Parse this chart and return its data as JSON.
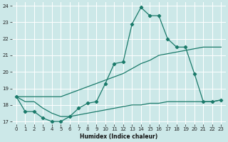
{
  "xlabel": "Humidex (Indice chaleur)",
  "xlim": [
    -0.5,
    23.5
  ],
  "ylim": [
    16.85,
    24.2
  ],
  "yticks": [
    17,
    18,
    19,
    20,
    21,
    22,
    23,
    24
  ],
  "xticks": [
    0,
    1,
    2,
    3,
    4,
    5,
    6,
    7,
    8,
    9,
    10,
    11,
    12,
    13,
    14,
    15,
    16,
    17,
    18,
    19,
    20,
    21,
    22,
    23
  ],
  "bg_color": "#cce8e8",
  "line_color": "#1a7a6a",
  "grid_color": "#ffffff",
  "curves": [
    {
      "x": [
        0,
        1,
        2,
        3,
        4,
        5,
        6,
        7,
        8,
        9,
        10,
        11,
        12,
        13,
        14,
        15,
        16,
        17,
        18,
        19,
        20,
        21,
        22,
        23
      ],
      "y": [
        18.5,
        17.6,
        17.6,
        17.2,
        17.0,
        17.0,
        17.3,
        17.8,
        18.1,
        18.2,
        19.3,
        20.5,
        20.6,
        22.9,
        23.9,
        23.4,
        23.4,
        22.0,
        21.5,
        21.5,
        19.9,
        18.2,
        18.2,
        18.3
      ],
      "markers": true
    },
    {
      "x": [
        0,
        1,
        2,
        3,
        4,
        5,
        6,
        7,
        8,
        9,
        10,
        11,
        12,
        13,
        14,
        15,
        16,
        17,
        18,
        19,
        20,
        21,
        22,
        23
      ],
      "y": [
        18.5,
        18.5,
        18.5,
        18.5,
        18.5,
        18.5,
        18.7,
        18.9,
        19.1,
        19.3,
        19.5,
        19.7,
        19.9,
        20.2,
        20.5,
        20.7,
        21.0,
        21.1,
        21.2,
        21.3,
        21.4,
        21.5,
        21.5,
        21.5
      ],
      "markers": false
    },
    {
      "x": [
        0,
        1,
        2,
        3,
        4,
        5,
        6,
        7,
        8,
        9,
        10,
        11,
        12,
        13,
        14,
        15,
        16,
        17,
        18,
        19,
        20,
        21,
        22,
        23
      ],
      "y": [
        18.5,
        18.2,
        18.2,
        17.8,
        17.5,
        17.3,
        17.3,
        17.4,
        17.5,
        17.6,
        17.7,
        17.8,
        17.9,
        18.0,
        18.0,
        18.1,
        18.1,
        18.2,
        18.2,
        18.2,
        18.2,
        18.2,
        18.2,
        18.3
      ],
      "markers": false
    }
  ]
}
